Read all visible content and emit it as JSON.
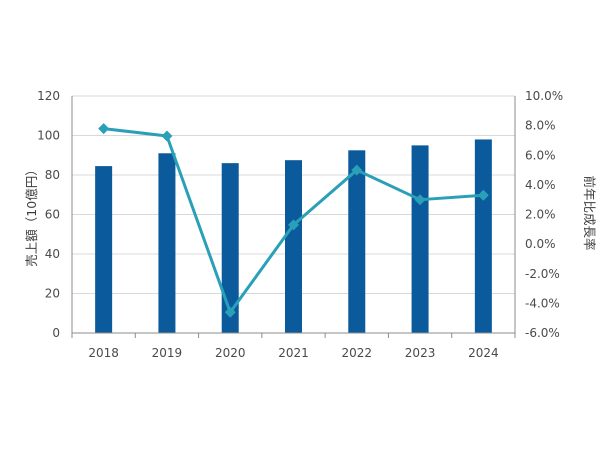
{
  "chart_data": {
    "type": "bar",
    "categories": [
      "2018",
      "2019",
      "2020",
      "2021",
      "2022",
      "2023",
      "2024"
    ],
    "series": [
      {
        "type": "bar",
        "axis": "left",
        "values": [
          84.5,
          91,
          86,
          87.5,
          92.5,
          95,
          98
        ],
        "color": "#0a5a9c"
      },
      {
        "type": "line",
        "axis": "right",
        "values": [
          7.8,
          7.3,
          -4.6,
          1.3,
          5.0,
          3.0,
          3.3
        ],
        "color": "#2aa0b8",
        "marker": "diamond"
      }
    ],
    "ylabel": "売上額（10億円）",
    "y2label": "前年比成長率",
    "ylim": [
      0,
      120
    ],
    "yticks": [
      "0",
      "20",
      "40",
      "60",
      "80",
      "100",
      "120"
    ],
    "y2lim": [
      -6.0,
      10.0
    ],
    "y2ticks": [
      "-6.0%",
      "-4.0%",
      "-2.0%",
      "0.0%",
      "2.0%",
      "4.0%",
      "6.0%",
      "8.0%",
      "10.0%"
    ],
    "grid": true,
    "legend": "none"
  }
}
